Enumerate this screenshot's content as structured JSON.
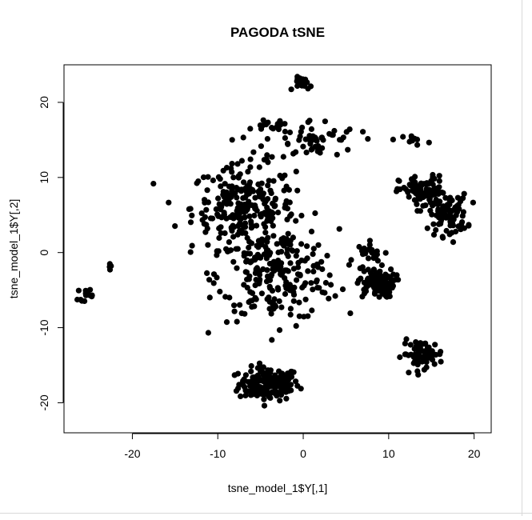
{
  "chart_data": {
    "type": "scatter",
    "title": "PAGODA tSNE",
    "xlabel": "tsne_model_1$Y[,1]",
    "ylabel": "tsne_model_1$Y[,2]",
    "xlim": [
      -28,
      22
    ],
    "ylim": [
      -24,
      25
    ],
    "xticks": [
      -20,
      -10,
      0,
      10,
      20
    ],
    "yticks": [
      -20,
      -10,
      0,
      10,
      20
    ],
    "grid": false,
    "legend": "none",
    "point_color": "#000000",
    "clusters": [
      {
        "center": [
          -4,
          -17.5
        ],
        "spread": [
          3.2,
          2.0
        ],
        "count": 170
      },
      {
        "center": [
          -7,
          6
        ],
        "spread": [
          5.5,
          5.0
        ],
        "count": 260
      },
      {
        "center": [
          -3,
          -3
        ],
        "spread": [
          6.5,
          5.5
        ],
        "count": 230
      },
      {
        "center": [
          1,
          15
        ],
        "spread": [
          5.0,
          2.5
        ],
        "count": 60
      },
      {
        "center": [
          8.5,
          -4
        ],
        "spread": [
          2.0,
          1.8
        ],
        "count": 95
      },
      {
        "center": [
          14,
          8
        ],
        "spread": [
          2.5,
          2.0
        ],
        "count": 90
      },
      {
        "center": [
          17,
          5
        ],
        "spread": [
          2.0,
          2.5
        ],
        "count": 80
      },
      {
        "center": [
          14,
          -13.5
        ],
        "spread": [
          2.2,
          1.6
        ],
        "count": 70
      },
      {
        "center": [
          0,
          22.5
        ],
        "spread": [
          0.9,
          0.8
        ],
        "count": 22
      },
      {
        "center": [
          13,
          15
        ],
        "spread": [
          1.2,
          0.6
        ],
        "count": 10
      },
      {
        "center": [
          -25.5,
          -5.5
        ],
        "spread": [
          0.8,
          0.8
        ],
        "count": 14
      },
      {
        "center": [
          -22.5,
          -2
        ],
        "spread": [
          0.6,
          0.4
        ],
        "count": 4
      },
      {
        "center": [
          -4,
          17
        ],
        "spread": [
          2.0,
          0.6
        ],
        "count": 14
      },
      {
        "center": [
          8,
          0
        ],
        "spread": [
          1.5,
          1.2
        ],
        "count": 20
      }
    ]
  }
}
